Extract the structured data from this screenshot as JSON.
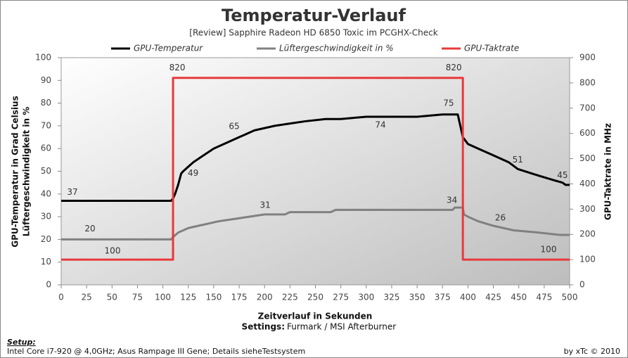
{
  "chart_data": {
    "type": "line",
    "title": "Temperatur-Verlauf",
    "subtitle": "[Review] Sapphire Radeon HD  6850 Toxic im PCGHX-Check",
    "x_label": "Zeitverlauf in Sekunden",
    "settings_label": "Settings:",
    "settings_text": "Furmark / MSI Afterburner",
    "y_label": [
      "GPU-Temperatur  in Grad Celsius",
      "Lüftergeschwindigkeit  in %"
    ],
    "y2_label": "GPU-Taktrate in MHz",
    "footer": {
      "setup_label": "Setup:",
      "setup_text": "Intel Core i7-920 @ 4,0GHz; Asus Rampage III Gene; Details sieheTestsystem",
      "credit": "by xTc © 2010"
    },
    "xlim": [
      0,
      500
    ],
    "xticks": [
      0,
      25,
      50,
      75,
      100,
      125,
      150,
      175,
      200,
      225,
      250,
      275,
      300,
      325,
      350,
      375,
      400,
      425,
      450,
      475,
      500
    ],
    "ylim": [
      0,
      100
    ],
    "yticks": [
      0,
      10,
      20,
      30,
      40,
      50,
      60,
      70,
      80,
      90,
      100
    ],
    "y2lim": [
      0,
      900
    ],
    "y2ticks": [
      0,
      100,
      200,
      300,
      400,
      500,
      600,
      700,
      800,
      900
    ],
    "grid": false,
    "legend": "top",
    "series": [
      {
        "name": "GPU-Temperatur",
        "color": "#000000",
        "x": [
          0,
          108,
          110,
          112,
          115,
          118,
          120,
          125,
          130,
          140,
          150,
          160,
          170,
          175,
          180,
          190,
          200,
          210,
          225,
          240,
          260,
          275,
          300,
          314,
          350,
          375,
          381,
          390,
          393,
          395,
          400,
          410,
          425,
          440,
          449,
          470,
          485,
          493,
          496,
          500
        ],
        "values": [
          37,
          37,
          38,
          40,
          44,
          49,
          50,
          52,
          54,
          57,
          60,
          62,
          64,
          65,
          66,
          68,
          69,
          70,
          71,
          72,
          73,
          73,
          74,
          74,
          74,
          75,
          75,
          75,
          69,
          65,
          62,
          60,
          57,
          54,
          51,
          48,
          46,
          45,
          44,
          44
        ]
      },
      {
        "name": "Lüftergeschwindigkeit in %",
        "color": "#808080",
        "x": [
          0,
          108,
          110,
          115,
          125,
          135,
          145,
          155,
          170,
          185,
          200,
          220,
          225,
          265,
          270,
          385,
          387,
          395,
          396,
          400,
          410,
          425,
          445,
          470,
          490,
          500
        ],
        "values": [
          20,
          20,
          21,
          23,
          25,
          26,
          27,
          28,
          29,
          30,
          31,
          31,
          32,
          32,
          33,
          33,
          34,
          34,
          31,
          30,
          28,
          26,
          24,
          23,
          22,
          22
        ]
      },
      {
        "name": "GPU-Taktrate",
        "color": "#e8393a",
        "axis": "y2",
        "x": [
          0,
          110,
          110,
          395,
          395,
          500
        ],
        "values": [
          100,
          100,
          820,
          820,
          100,
          100
        ]
      }
    ]
  }
}
